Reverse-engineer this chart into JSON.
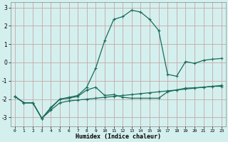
{
  "xlabel": "Humidex (Indice chaleur)",
  "bg_color": "#d4f0ee",
  "grid_color": "#c4a8a8",
  "line_color": "#1a6b5a",
  "xlim": [
    -0.5,
    23.5
  ],
  "ylim": [
    -3.5,
    3.3
  ],
  "yticks": [
    -3,
    -2,
    -1,
    0,
    1,
    2,
    3
  ],
  "xticks": [
    0,
    1,
    2,
    3,
    4,
    5,
    6,
    7,
    8,
    9,
    10,
    11,
    12,
    13,
    14,
    15,
    16,
    17,
    18,
    19,
    20,
    21,
    22,
    23
  ],
  "line1_x": [
    0,
    1,
    2,
    3,
    4,
    5,
    6,
    7,
    8,
    9,
    10,
    11,
    12,
    13,
    14,
    15,
    16,
    17,
    18,
    19,
    20,
    21,
    22,
    23
  ],
  "line1_y": [
    -1.85,
    -2.2,
    -2.2,
    -3.05,
    -2.5,
    -2.0,
    -1.95,
    -1.85,
    -1.5,
    -1.35,
    -1.8,
    -1.75,
    -1.9,
    -1.95,
    -1.95,
    -1.95,
    -1.95,
    -1.6,
    -1.5,
    -1.4,
    -1.38,
    -1.35,
    -1.3,
    -1.3
  ],
  "line2_x": [
    0,
    1,
    2,
    3,
    4,
    5,
    6,
    7,
    8,
    9,
    10,
    11,
    12,
    13,
    14,
    15,
    16,
    17,
    18,
    19,
    20,
    21,
    22,
    23
  ],
  "line2_y": [
    -1.85,
    -2.2,
    -2.2,
    -3.05,
    -2.45,
    -2.0,
    -1.9,
    -1.8,
    -1.35,
    -0.3,
    1.2,
    2.35,
    2.5,
    2.85,
    2.75,
    2.35,
    1.75,
    -0.65,
    -0.75,
    0.05,
    -0.05,
    0.12,
    0.18,
    0.22
  ],
  "line3_x": [
    0,
    1,
    2,
    3,
    4,
    5,
    6,
    7,
    8,
    9,
    10,
    11,
    12,
    13,
    14,
    15,
    16,
    17,
    18,
    19,
    20,
    21,
    22,
    23
  ],
  "line3_y": [
    -1.85,
    -2.2,
    -2.2,
    -3.05,
    -2.6,
    -2.2,
    -2.1,
    -2.05,
    -2.0,
    -1.95,
    -1.9,
    -1.85,
    -1.8,
    -1.75,
    -1.7,
    -1.65,
    -1.6,
    -1.55,
    -1.5,
    -1.45,
    -1.4,
    -1.35,
    -1.3,
    -1.25
  ]
}
